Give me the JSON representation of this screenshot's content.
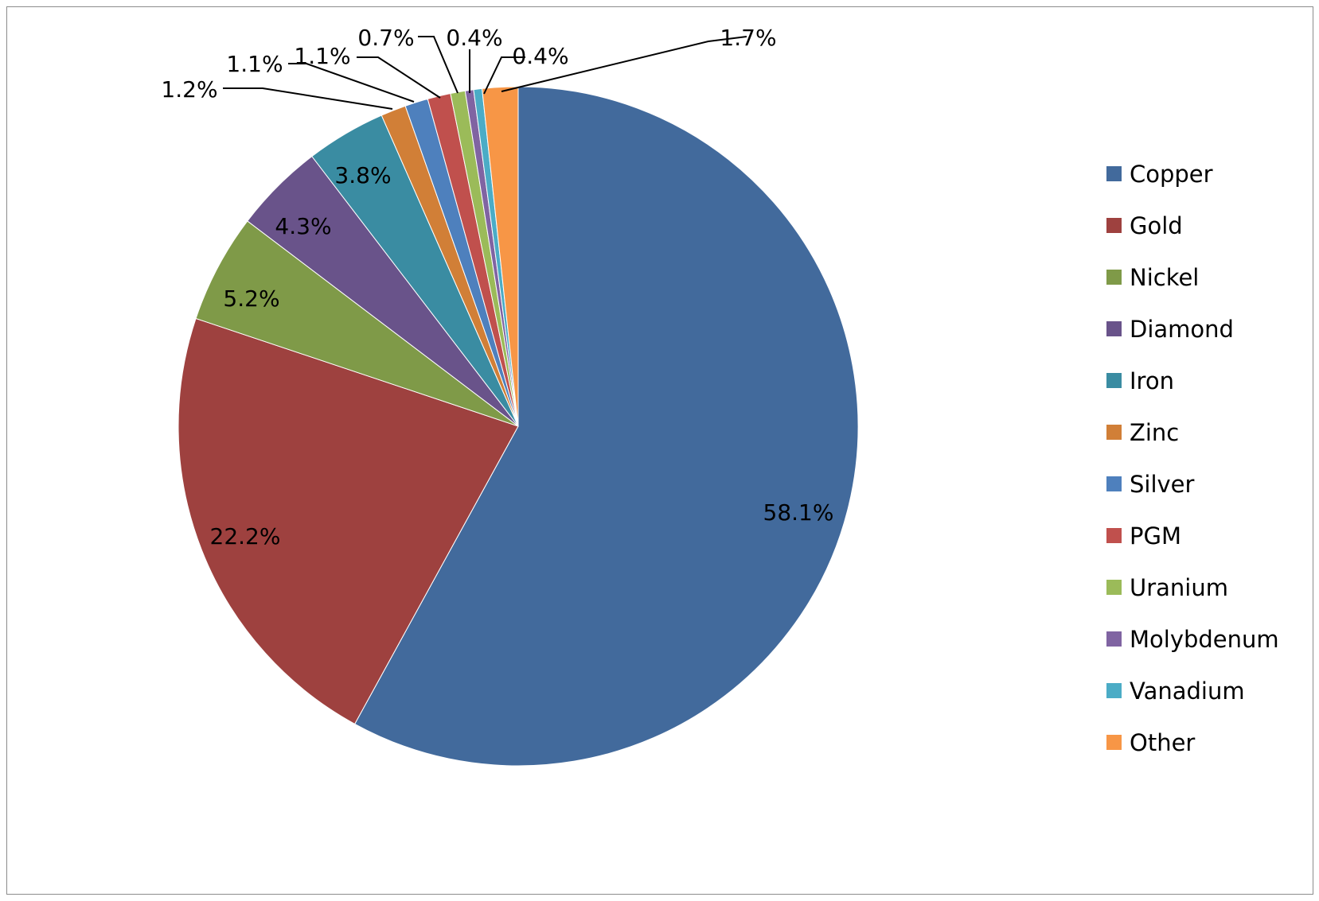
{
  "chart_data": {
    "type": "pie",
    "title": "",
    "start_angle_deg": 0,
    "direction": "clockwise",
    "legend_position": "right",
    "categories": [
      "Copper",
      "Gold",
      "Nickel",
      "Diamond",
      "Iron",
      "Zinc",
      "Silver",
      "PGM",
      "Uranium",
      "Molybdenum",
      "Vanadium",
      "Other"
    ],
    "values": [
      58.1,
      22.2,
      5.2,
      4.3,
      3.8,
      1.2,
      1.1,
      1.1,
      0.7,
      0.4,
      0.4,
      1.7
    ],
    "labels": [
      "58.1%",
      "22.2%",
      "5.2%",
      "4.3%",
      "3.8%",
      "1.2%",
      "1.1%",
      "1.1%",
      "0.7%",
      "0.4%",
      "0.4%",
      "1.7%"
    ],
    "colors": [
      "#426A9C",
      "#9E413F",
      "#7F9A48",
      "#69538A",
      "#3A8CA2",
      "#D17F37",
      "#4E80BD",
      "#C0504D",
      "#9BBB59",
      "#8064A2",
      "#4BACC6",
      "#F79646"
    ],
    "label_placement": [
      "inside",
      "inside",
      "inside",
      "inside",
      "inside",
      "outside",
      "outside",
      "outside",
      "outside",
      "outside",
      "outside",
      "outside"
    ]
  },
  "legend": {
    "items": [
      {
        "label": "Copper",
        "color": "#426A9C"
      },
      {
        "label": "Gold",
        "color": "#9E413F"
      },
      {
        "label": "Nickel",
        "color": "#7F9A48"
      },
      {
        "label": "Diamond",
        "color": "#69538A"
      },
      {
        "label": "Iron",
        "color": "#3A8CA2"
      },
      {
        "label": "Zinc",
        "color": "#D17F37"
      },
      {
        "label": "Silver",
        "color": "#4E80BD"
      },
      {
        "label": "PGM",
        "color": "#C0504D"
      },
      {
        "label": "Uranium",
        "color": "#9BBB59"
      },
      {
        "label": "Molybdenum",
        "color": "#8064A2"
      },
      {
        "label": "Vanadium",
        "color": "#4BACC6"
      },
      {
        "label": "Other",
        "color": "#F79646"
      }
    ]
  }
}
